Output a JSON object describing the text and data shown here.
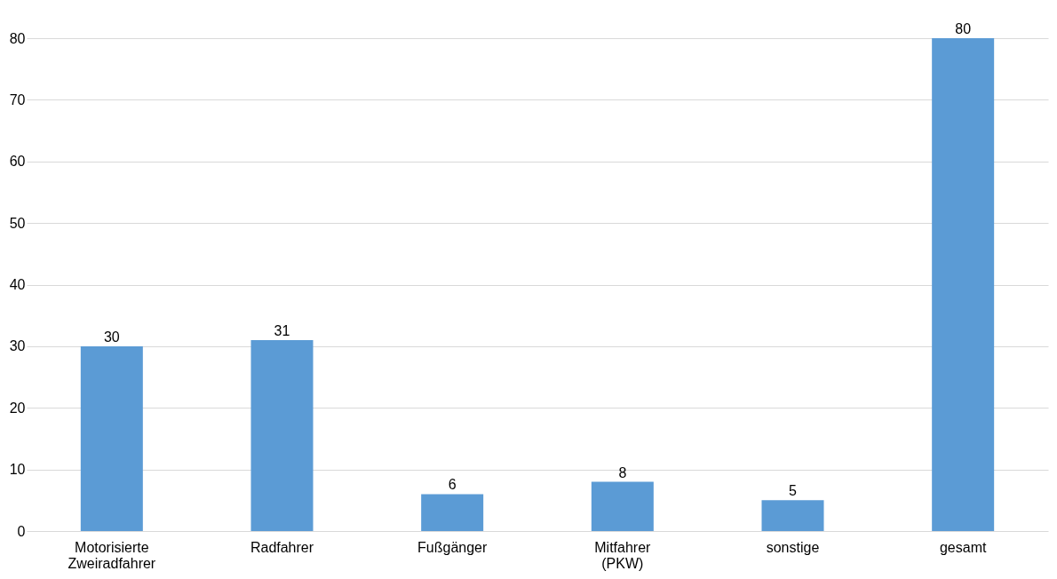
{
  "chart_data": {
    "type": "bar",
    "categories": [
      "Motorisierte Zweiradfahrer",
      "Radfahrer",
      "Fußgänger",
      "Mitfahrer (PKW)",
      "sonstige",
      "gesamt"
    ],
    "values": [
      30,
      31,
      6,
      8,
      5,
      80
    ],
    "color": "#5b9bd5",
    "ylim": [
      0,
      80
    ],
    "yticks": [
      0,
      10,
      20,
      30,
      40,
      50,
      60,
      70,
      80
    ],
    "grid": "y",
    "data_labels": true
  }
}
